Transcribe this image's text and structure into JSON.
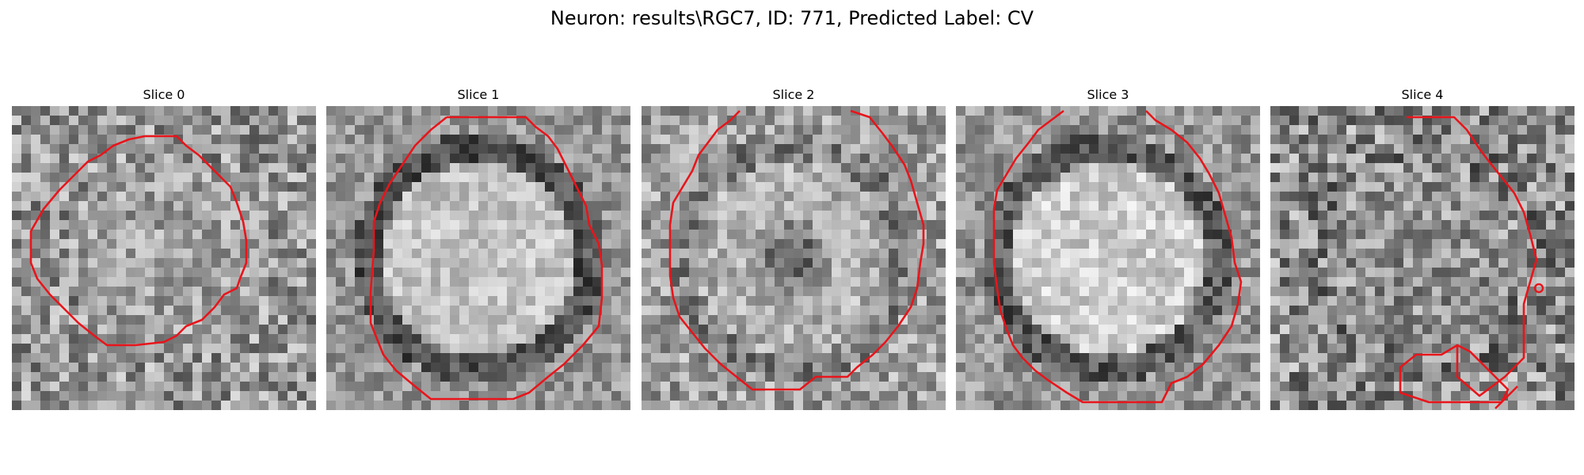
{
  "figure": {
    "title": "Neuron: results\\RGC7, ID: 771, Predicted Label: CV",
    "contour_color": "#e8151b",
    "colormap": "grayscale"
  },
  "panels": [
    {
      "title": "Slice 0"
    },
    {
      "title": "Slice 1"
    },
    {
      "title": "Slice 2"
    },
    {
      "title": "Slice 3"
    },
    {
      "title": "Slice 4"
    }
  ]
}
